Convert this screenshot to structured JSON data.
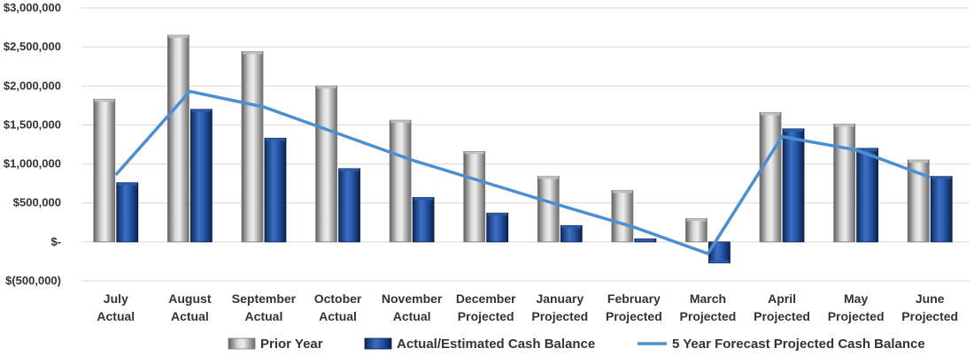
{
  "chart_data": {
    "type": "bar",
    "title": "",
    "xlabel": "",
    "ylabel": "",
    "ylim": [
      -500000,
      3000000
    ],
    "y_ticks": [
      {
        "value": 3000000,
        "label": "$3,000,000"
      },
      {
        "value": 2500000,
        "label": "$2,500,000"
      },
      {
        "value": 2000000,
        "label": "$2,000,000"
      },
      {
        "value": 1500000,
        "label": "$1,500,000"
      },
      {
        "value": 1000000,
        "label": "$1,000,000"
      },
      {
        "value": 500000,
        "label": "$500,000"
      },
      {
        "value": 0,
        "label": "$-"
      },
      {
        "value": -500000,
        "label": "$(500,000)"
      }
    ],
    "categories": [
      [
        "July",
        "Actual"
      ],
      [
        "August",
        "Actual"
      ],
      [
        "September",
        "Actual"
      ],
      [
        "October",
        "Actual"
      ],
      [
        "November",
        "Actual"
      ],
      [
        "December",
        "Projected"
      ],
      [
        "January",
        "Projected"
      ],
      [
        "February",
        "Projected"
      ],
      [
        "March",
        "Projected"
      ],
      [
        "April",
        "Projected"
      ],
      [
        "May",
        "Projected"
      ],
      [
        "June",
        "Projected"
      ]
    ],
    "series": [
      {
        "name": "Prior Year",
        "kind": "bar",
        "color": "#a6a6a6",
        "values": [
          1830000,
          2650000,
          2440000,
          2000000,
          1560000,
          1160000,
          840000,
          660000,
          300000,
          1660000,
          1510000,
          1050000
        ]
      },
      {
        "name": "Actual/Estimated Cash Balance",
        "kind": "bar",
        "color": "#1f4e99",
        "values": [
          760000,
          1700000,
          1330000,
          940000,
          570000,
          370000,
          210000,
          40000,
          -270000,
          1450000,
          1200000,
          840000
        ]
      },
      {
        "name": "5 Year Forecast Projected Cash Balance",
        "kind": "line",
        "color": "#4a90d0",
        "values": [
          860000,
          1930000,
          1730000,
          1390000,
          1050000,
          760000,
          470000,
          190000,
          -150000,
          1350000,
          1180000,
          830000
        ]
      }
    ],
    "grid": "horizontal",
    "legend": "bottom"
  }
}
